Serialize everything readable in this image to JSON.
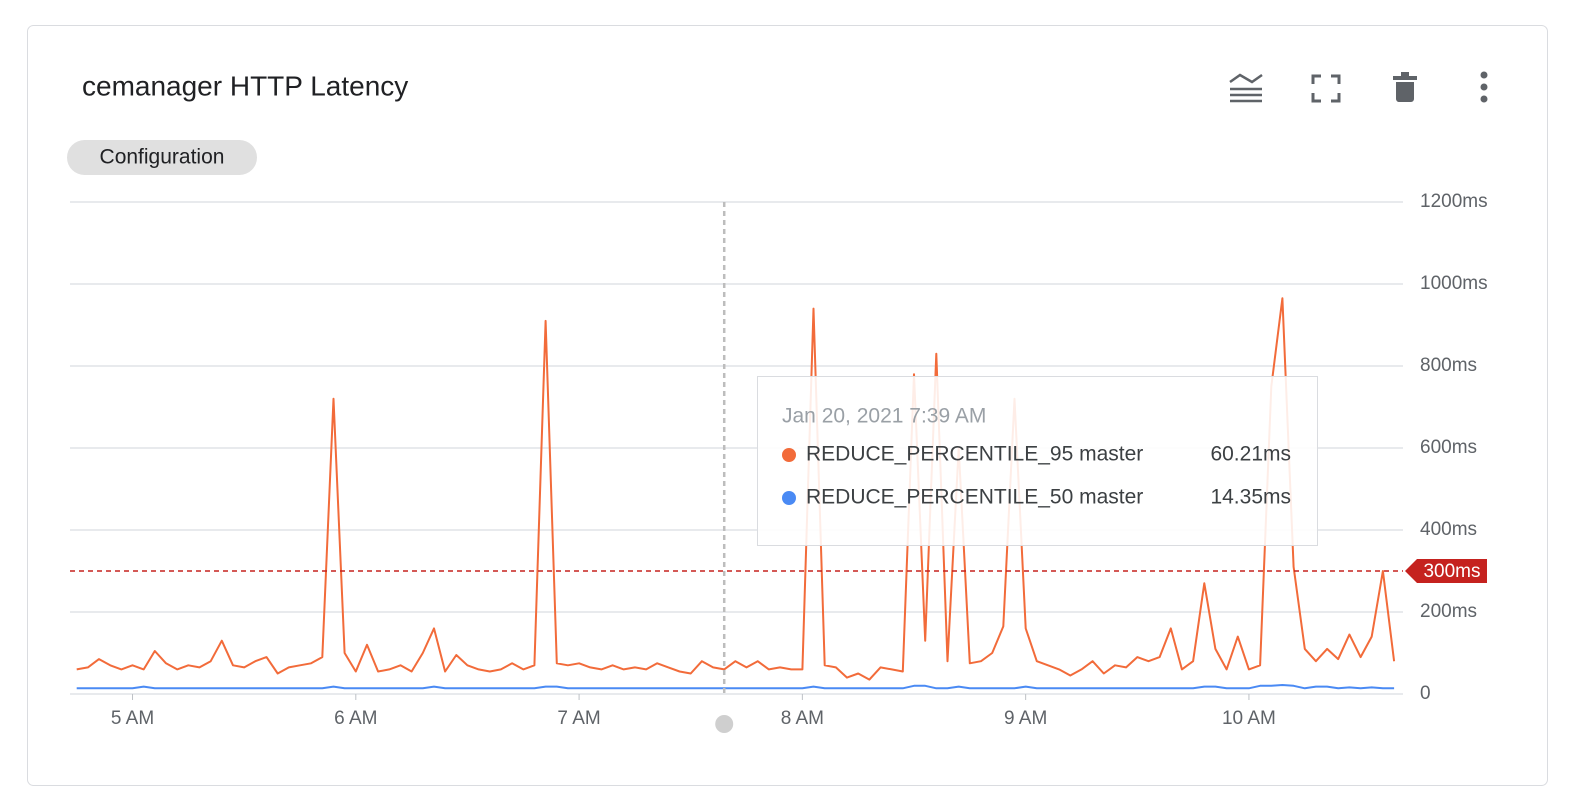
{
  "card": {
    "title": "cemanager HTTP Latency",
    "chip": "Configuration"
  },
  "chart_data": {
    "type": "line",
    "x": [
      4.75,
      4.8,
      4.85,
      4.9,
      4.95,
      5,
      5.05,
      5.1,
      5.15,
      5.2,
      5.25,
      5.3,
      5.35,
      5.4,
      5.45,
      5.5,
      5.55,
      5.6,
      5.65,
      5.7,
      5.75,
      5.8,
      5.85,
      5.9,
      5.95,
      6,
      6.05,
      6.1,
      6.15,
      6.2,
      6.25,
      6.3,
      6.35,
      6.4,
      6.45,
      6.5,
      6.55,
      6.6,
      6.65,
      6.7,
      6.75,
      6.8,
      6.85,
      6.9,
      6.95,
      7,
      7.05,
      7.1,
      7.15,
      7.2,
      7.25,
      7.3,
      7.35,
      7.4,
      7.45,
      7.5,
      7.55,
      7.6,
      7.65,
      7.7,
      7.75,
      7.8,
      7.85,
      7.9,
      7.95,
      8,
      8.05,
      8.1,
      8.15,
      8.2,
      8.25,
      8.3,
      8.35,
      8.4,
      8.45,
      8.5,
      8.55,
      8.6,
      8.65,
      8.7,
      8.75,
      8.8,
      8.85,
      8.9,
      8.95,
      9,
      9.05,
      9.1,
      9.15,
      9.2,
      9.25,
      9.3,
      9.35,
      9.4,
      9.45,
      9.5,
      9.55,
      9.6,
      9.65,
      9.7,
      9.75,
      9.8,
      9.85,
      9.9,
      9.95,
      10,
      10.05,
      10.1,
      10.15,
      10.2,
      10.25,
      10.3,
      10.35,
      10.4,
      10.45,
      10.5,
      10.55,
      10.6,
      10.65
    ],
    "series": [
      {
        "name": "REDUCE_PERCENTILE_95 master",
        "color": "#f26b3a",
        "values": [
          60,
          65,
          85,
          70,
          60,
          70,
          60,
          105,
          75,
          60,
          70,
          65,
          80,
          130,
          70,
          65,
          80,
          90,
          50,
          65,
          70,
          75,
          90,
          720,
          100,
          55,
          120,
          55,
          60,
          70,
          55,
          100,
          160,
          55,
          95,
          70,
          60,
          55,
          60,
          75,
          60,
          70,
          910,
          75,
          70,
          75,
          65,
          60,
          70,
          60,
          65,
          60,
          75,
          65,
          55,
          50,
          80,
          65,
          60,
          80,
          65,
          80,
          60,
          65,
          60,
          60,
          940,
          70,
          65,
          40,
          50,
          35,
          65,
          60,
          55,
          780,
          130,
          830,
          80,
          600,
          75,
          80,
          100,
          165,
          720,
          160,
          80,
          70,
          60,
          45,
          60,
          80,
          50,
          70,
          65,
          90,
          80,
          90,
          160,
          60,
          80,
          270,
          110,
          60,
          140,
          60,
          70,
          750,
          965,
          310,
          110,
          80,
          110,
          85,
          145,
          90,
          140,
          300,
          80
        ]
      },
      {
        "name": "REDUCE_PERCENTILE_50 master",
        "color": "#4a8af4",
        "values": [
          14,
          14,
          14,
          14,
          14,
          14,
          18,
          14,
          14,
          14,
          14,
          14,
          14,
          14,
          14,
          14,
          14,
          14,
          14,
          14,
          14,
          14,
          14,
          18,
          14,
          14,
          14,
          14,
          14,
          14,
          14,
          14,
          18,
          14,
          14,
          14,
          14,
          14,
          14,
          14,
          14,
          14,
          18,
          18,
          14,
          14,
          14,
          14,
          14,
          14,
          14,
          14,
          14,
          14,
          14,
          14,
          14,
          14,
          14,
          14,
          14,
          14,
          14,
          14,
          14,
          14,
          18,
          14,
          14,
          14,
          14,
          14,
          14,
          14,
          14,
          20,
          20,
          14,
          14,
          18,
          14,
          14,
          14,
          14,
          14,
          18,
          14,
          14,
          14,
          14,
          14,
          14,
          14,
          14,
          14,
          14,
          14,
          14,
          14,
          14,
          14,
          18,
          18,
          14,
          14,
          14,
          20,
          20,
          22,
          20,
          14,
          18,
          18,
          14,
          16,
          14,
          16,
          14,
          14
        ]
      }
    ],
    "xlim": [
      4.72,
      10.69
    ],
    "xticks": [
      {
        "value": 5,
        "label": "5 AM"
      },
      {
        "value": 6,
        "label": "6 AM"
      },
      {
        "value": 7,
        "label": "7 AM"
      },
      {
        "value": 8,
        "label": "8 AM"
      },
      {
        "value": 9,
        "label": "9 AM"
      },
      {
        "value": 10,
        "label": "10 AM"
      }
    ],
    "ylim": [
      0,
      1200
    ],
    "yticks": [
      0,
      {
        "value": 200,
        "label": "200ms"
      },
      {
        "value": 400,
        "label": "400ms"
      },
      {
        "value": 600,
        "label": "600ms"
      },
      {
        "value": 800,
        "label": "800ms"
      },
      {
        "value": 1000,
        "label": "1000ms"
      },
      {
        "value": 1200,
        "label": "1200ms"
      }
    ],
    "grid": true,
    "threshold": {
      "value": 300,
      "label": "300ms",
      "color": "#c5221f"
    },
    "cursor_x": 7.65,
    "tooltip": {
      "title": "Jan 20, 2021 7:39 AM",
      "values": [
        60.21,
        14.35
      ],
      "value_labels": [
        "60.21ms",
        "14.35ms"
      ]
    }
  }
}
